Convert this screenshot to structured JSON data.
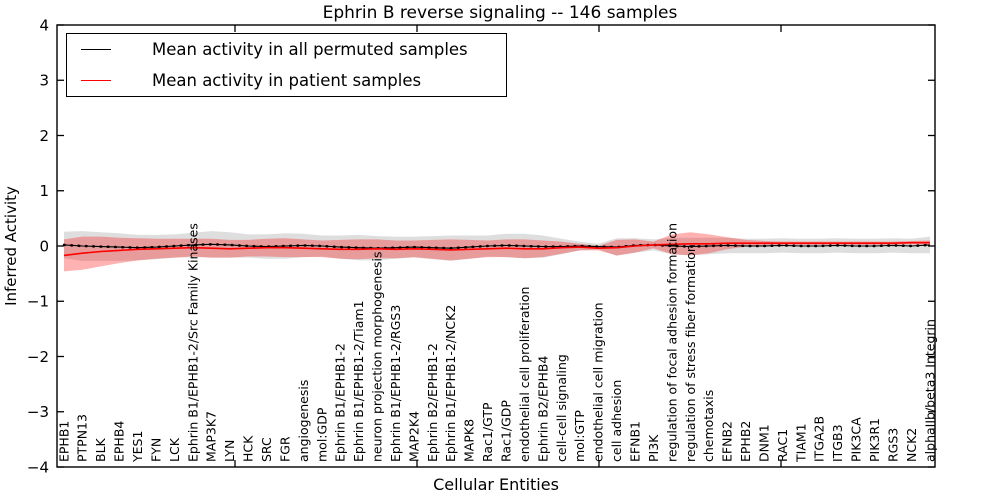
{
  "title": "Ephrin B reverse signaling -- 146 samples",
  "axes": {
    "xlabel": "Cellular Entities",
    "ylabel": "Inferred Activity",
    "ytick_labels": [
      "4",
      "3",
      "2",
      "1",
      "0",
      "−1",
      "−2",
      "−3",
      "−4"
    ]
  },
  "legend": {
    "items": [
      {
        "label": "Mean activity in all permuted samples",
        "color": "#000000"
      },
      {
        "label": "Mean activity in patient samples",
        "color": "#ff0000"
      }
    ]
  },
  "chart_data": {
    "type": "line",
    "title": "Ephrin B reverse signaling -- 146 samples",
    "xlabel": "Cellular Entities",
    "ylabel": "Inferred Activity",
    "ylim": [
      -4,
      4
    ],
    "yticks": [
      4,
      3,
      2,
      1,
      0,
      -1,
      -2,
      -3,
      -4
    ],
    "grid": false,
    "legend_position": "upper left",
    "categories": [
      "EPHB1",
      "PTPN13",
      "BLK",
      "EPHB4",
      "YES1",
      "FYN",
      "LCK",
      "Ephrin B1/EPHB1-2/Src Family Kinases",
      "MAP3K7",
      "LYN",
      "HCK",
      "SRC",
      "FGR",
      "angiogenesis",
      "mol:GDP",
      "Ephrin B1/EPHB1-2",
      "Ephrin B1/EPHB1-2/Tiam1",
      "neuron projection morphogenesis",
      "Ephrin B1/EPHB1-2/RGS3",
      "MAP2K4",
      "Ephrin B2/EPHB1-2",
      "Ephrin B1/EPHB1-2/NCK2",
      "MAPK8",
      "Rac1/GTP",
      "Rac1/GDP",
      "endothelial cell proliferation",
      "Ephrin B2/EPHB4",
      "cell-cell signaling",
      "mol:GTP",
      "endothelial cell migration",
      "cell adhesion",
      "EFNB1",
      "PI3K",
      "regulation of focal adhesion formation",
      "regulation of stress fiber formation",
      "chemotaxis",
      "EFNB2",
      "EPHB2",
      "DNM1",
      "RAC1",
      "TIAM1",
      "ITGA2B",
      "ITGB3",
      "PIK3CA",
      "PIK3R1",
      "RGS3",
      "NCK2",
      "alphaIIb/beta3 Integrin"
    ],
    "series": [
      {
        "name": "Mean activity in all permuted samples",
        "color": "#000000",
        "line_style": "dotted",
        "band": "mean ± std",
        "band_color": "#000000",
        "band_opacity": 0.13,
        "mean": [
          0.02,
          0.0,
          -0.01,
          -0.02,
          -0.03,
          -0.02,
          0.0,
          0.02,
          0.03,
          0.02,
          0.0,
          -0.01,
          0.0,
          0.01,
          0.0,
          -0.02,
          -0.03,
          -0.04,
          -0.03,
          -0.02,
          -0.03,
          -0.04,
          -0.02,
          0.0,
          0.01,
          0.0,
          -0.01,
          -0.01,
          0.0,
          -0.01,
          -0.02,
          0.01,
          0.02,
          0.0,
          -0.01,
          0.0,
          0.01,
          0.0,
          0.0,
          0.01,
          0.0,
          0.0,
          0.01,
          0.0,
          0.0,
          0.01,
          0.0,
          0.02
        ],
        "std": [
          0.24,
          0.27,
          0.26,
          0.25,
          0.23,
          0.22,
          0.21,
          0.22,
          0.24,
          0.23,
          0.21,
          0.22,
          0.23,
          0.21,
          0.19,
          0.21,
          0.23,
          0.22,
          0.2,
          0.19,
          0.21,
          0.23,
          0.21,
          0.19,
          0.21,
          0.22,
          0.2,
          0.14,
          0.08,
          0.05,
          0.16,
          0.13,
          0.1,
          0.15,
          0.16,
          0.15,
          0.14,
          0.13,
          0.13,
          0.13,
          0.13,
          0.13,
          0.13,
          0.13,
          0.13,
          0.13,
          0.13,
          0.15
        ]
      },
      {
        "name": "Mean activity in patient samples",
        "color": "#ff0000",
        "line_style": "solid",
        "band": "mean ± std",
        "band_color": "#ff0000",
        "band_opacity": 0.3,
        "mean": [
          -0.17,
          -0.13,
          -0.1,
          -0.08,
          -0.06,
          -0.05,
          -0.04,
          -0.03,
          -0.04,
          -0.05,
          -0.04,
          -0.03,
          -0.03,
          -0.04,
          -0.05,
          -0.06,
          -0.06,
          -0.05,
          -0.06,
          -0.05,
          -0.06,
          -0.07,
          -0.06,
          -0.05,
          -0.04,
          -0.05,
          -0.05,
          -0.03,
          -0.02,
          -0.04,
          -0.03,
          0.0,
          0.02,
          0.03,
          0.04,
          0.04,
          0.05,
          0.05,
          0.05,
          0.05,
          0.05,
          0.05,
          0.05,
          0.05,
          0.05,
          0.05,
          0.06,
          0.06
        ],
        "std": [
          0.29,
          0.3,
          0.27,
          0.23,
          0.2,
          0.18,
          0.17,
          0.16,
          0.17,
          0.16,
          0.15,
          0.16,
          0.17,
          0.16,
          0.15,
          0.17,
          0.18,
          0.17,
          0.16,
          0.15,
          0.17,
          0.19,
          0.17,
          0.15,
          0.16,
          0.17,
          0.15,
          0.11,
          0.06,
          0.04,
          0.14,
          0.12,
          0.06,
          0.18,
          0.21,
          0.17,
          0.11,
          0.06,
          0.04,
          0.03,
          0.03,
          0.03,
          0.03,
          0.03,
          0.03,
          0.03,
          0.03,
          0.04
        ]
      }
    ]
  }
}
